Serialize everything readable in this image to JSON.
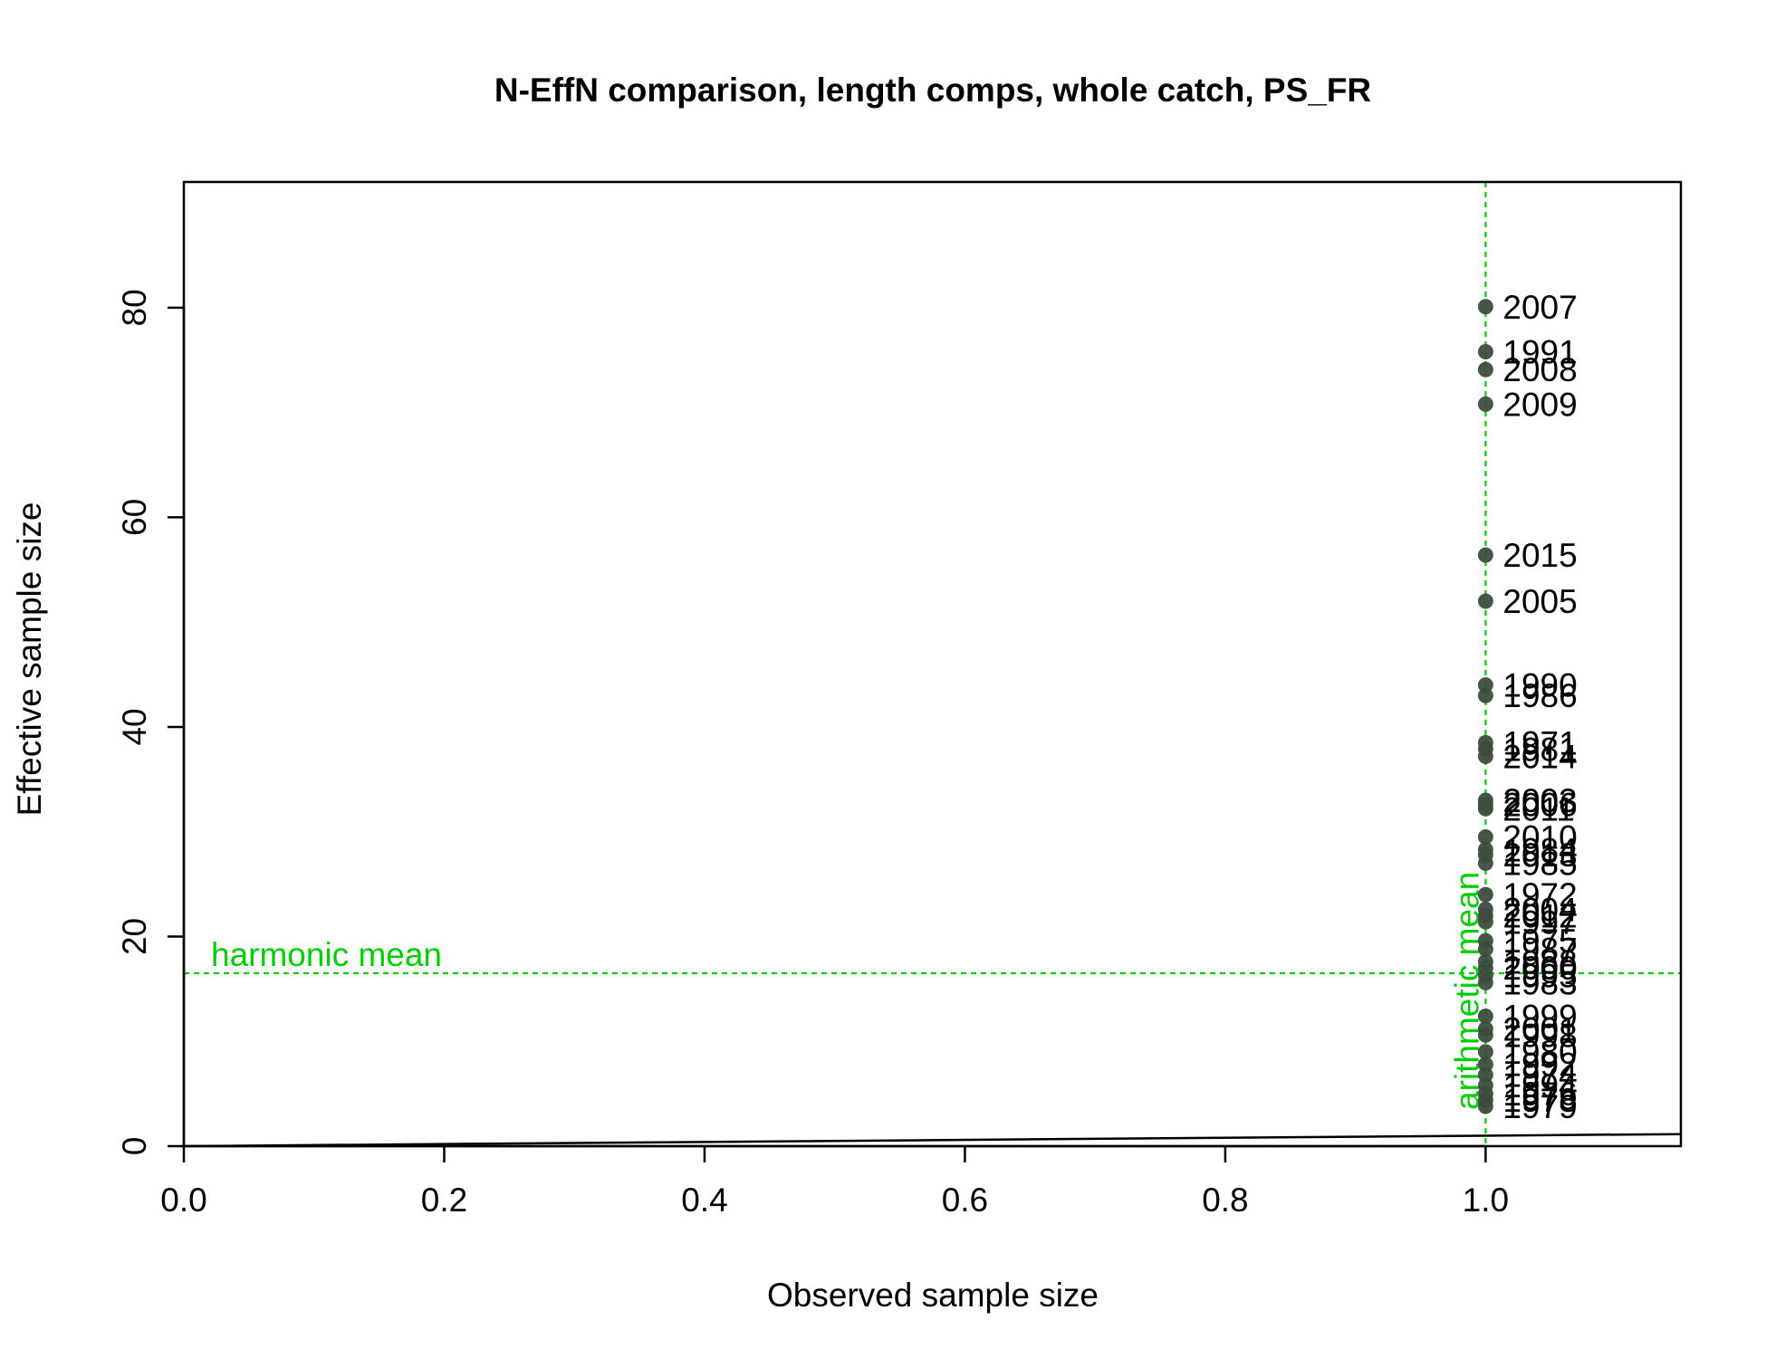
{
  "chart_data": {
    "type": "scatter",
    "title": "N-EffN comparison, length comps, whole catch, PS_FR",
    "xlabel": "Observed sample size",
    "ylabel": "Effective sample size",
    "xlim": [
      0,
      1.15
    ],
    "ylim": [
      0,
      92
    ],
    "x_ticks": [
      "0.0",
      "0.2",
      "0.4",
      "0.6",
      "0.8",
      "1.0"
    ],
    "y_ticks": [
      "0",
      "20",
      "40",
      "60",
      "80"
    ],
    "grid": false,
    "series": [
      {
        "points": [
          {
            "x": 1,
            "y": 80.1,
            "label": "2007"
          },
          {
            "x": 1,
            "y": 75.8,
            "label": "1991"
          },
          {
            "x": 1,
            "y": 74.1,
            "label": "2008"
          },
          {
            "x": 1,
            "y": 70.8,
            "label": "2009"
          },
          {
            "x": 1,
            "y": 56.4,
            "label": "2015"
          },
          {
            "x": 1,
            "y": 52.0,
            "label": "2005"
          },
          {
            "x": 1,
            "y": 44.0,
            "label": "1990"
          },
          {
            "x": 1,
            "y": 43.0,
            "label": "1986"
          },
          {
            "x": 1,
            "y": 38.5,
            "label": "1971"
          },
          {
            "x": 1,
            "y": 37.9,
            "label": "1981"
          },
          {
            "x": 1,
            "y": 37.2,
            "label": "2014"
          },
          {
            "x": 1,
            "y": 33.0,
            "label": "2003"
          },
          {
            "x": 1,
            "y": 32.6,
            "label": "2006"
          },
          {
            "x": 1,
            "y": 32.2,
            "label": "2011"
          },
          {
            "x": 1,
            "y": 29.5,
            "label": "2010"
          },
          {
            "x": 1,
            "y": 28.3,
            "label": "1984"
          },
          {
            "x": 1,
            "y": 27.8,
            "label": "2013"
          },
          {
            "x": 1,
            "y": 27.0,
            "label": "1985"
          },
          {
            "x": 1,
            "y": 24.0,
            "label": "1972"
          },
          {
            "x": 1,
            "y": 22.6,
            "label": "2004"
          },
          {
            "x": 1,
            "y": 22.0,
            "label": "2012"
          },
          {
            "x": 1,
            "y": 21.4,
            "label": "1997"
          },
          {
            "x": 1,
            "y": 19.6,
            "label": "1975"
          },
          {
            "x": 1,
            "y": 18.8,
            "label": "1987"
          },
          {
            "x": 1,
            "y": 17.6,
            "label": "1988"
          },
          {
            "x": 1,
            "y": 17.0,
            "label": "2000"
          },
          {
            "x": 1,
            "y": 16.3,
            "label": "1995"
          },
          {
            "x": 1,
            "y": 15.6,
            "label": "1983"
          },
          {
            "x": 1,
            "y": 12.4,
            "label": "1999"
          },
          {
            "x": 1,
            "y": 11.2,
            "label": "2001"
          },
          {
            "x": 1,
            "y": 10.6,
            "label": "1998"
          },
          {
            "x": 1,
            "y": 9.0,
            "label": "1980"
          },
          {
            "x": 1,
            "y": 7.8,
            "label": "1992"
          },
          {
            "x": 1,
            "y": 6.8,
            "label": "1974"
          },
          {
            "x": 1,
            "y": 5.8,
            "label": "1994"
          },
          {
            "x": 1,
            "y": 5.0,
            "label": "1976"
          },
          {
            "x": 1,
            "y": 4.4,
            "label": "1978"
          },
          {
            "x": 1,
            "y": 3.8,
            "label": "1979"
          }
        ]
      }
    ],
    "reference_lines": {
      "identity_line": {
        "from": [
          0,
          0
        ],
        "to": [
          1.15,
          1.15
        ]
      },
      "harmonic_mean": {
        "y": 16.5,
        "label": "harmonic mean"
      },
      "arithmetic_mean": {
        "x": 1.0,
        "label": "arithmetic mean"
      }
    },
    "colors": {
      "points": "#3d4d3d",
      "reference": "#00cd00",
      "axis": "#000000"
    }
  }
}
